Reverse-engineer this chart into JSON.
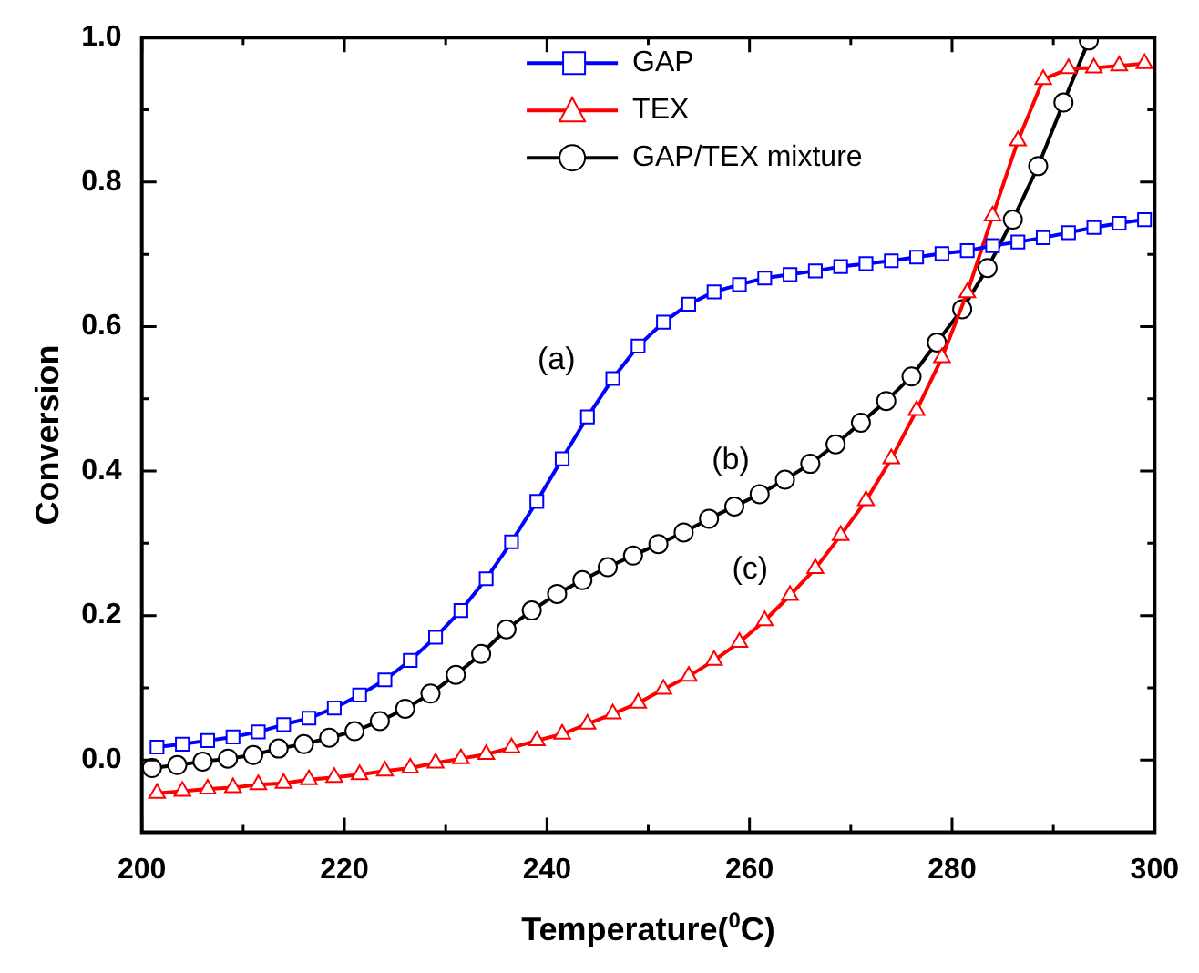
{
  "chart_data": {
    "type": "line",
    "xlabel": "Temperature($^{0}$C)",
    "ylabel": "Conversion",
    "xlim": [
      200,
      300
    ],
    "ylim": [
      -0.1,
      1.0
    ],
    "xticks": [
      200,
      {
        "value": 210,
        "label": null
      },
      220,
      {
        "value": 230,
        "label": null
      },
      240,
      {
        "value": 250,
        "label": null
      },
      260,
      {
        "value": 270,
        "label": null
      },
      280,
      {
        "value": 290,
        "label": null
      },
      300
    ],
    "yticks": [
      {
        "value": -0.1,
        "label": null
      },
      {
        "value": 0,
        "label": "0.0"
      },
      {
        "value": 0.1,
        "label": null
      },
      {
        "value": 0.2,
        "label": "0.2"
      },
      {
        "value": 0.3,
        "label": null
      },
      {
        "value": 0.4,
        "label": "0.4"
      },
      {
        "value": 0.5,
        "label": null
      },
      {
        "value": 0.6,
        "label": "0.6"
      },
      {
        "value": 0.7,
        "label": null
      },
      {
        "value": 0.8,
        "label": "0.8"
      },
      {
        "value": 0.9,
        "label": null
      },
      {
        "value": 1.0,
        "label": "1.0"
      }
    ],
    "legend": "top",
    "annotations": [
      "(a)",
      "(b)",
      "(c)"
    ],
    "series": [
      {
        "name": "GAP",
        "color": "#0000ff",
        "marker": "square",
        "x": [
          201.5,
          204,
          206.5,
          209,
          211.5,
          214,
          216.5,
          219,
          221.5,
          224,
          226.5,
          229,
          231.5,
          234,
          236.5,
          239,
          241.5,
          244,
          246.5,
          249,
          251.5,
          254,
          256.5,
          259,
          261.5,
          264,
          266.5,
          269,
          271.5,
          274,
          276.5,
          279,
          281.5,
          284,
          286.5,
          289,
          291.5,
          294,
          296.5,
          299
        ],
        "values": [
          0.018,
          0.022,
          0.027,
          0.032,
          0.039,
          0.049,
          0.058,
          0.072,
          0.09,
          0.111,
          0.138,
          0.17,
          0.207,
          0.251,
          0.302,
          0.358,
          0.417,
          0.475,
          0.528,
          0.573,
          0.606,
          0.631,
          0.648,
          0.658,
          0.667,
          0.672,
          0.677,
          0.683,
          0.687,
          0.691,
          0.696,
          0.701,
          0.705,
          0.712,
          0.717,
          0.723,
          0.73,
          0.737,
          0.743,
          0.748
        ]
      },
      {
        "name": "TEX",
        "color": "#ff0000",
        "marker": "triangle",
        "x": [
          201.5,
          204,
          206.5,
          209,
          211.5,
          214,
          216.5,
          219,
          221.5,
          224,
          226.5,
          229,
          231.5,
          234,
          236.5,
          239,
          241.5,
          244,
          246.5,
          249,
          251.5,
          254,
          256.5,
          259,
          261.5,
          264,
          266.5,
          269,
          271.5,
          274,
          276.5,
          279,
          281.5,
          284,
          286.5,
          289,
          291.5,
          294,
          296.5,
          299
        ],
        "values": [
          -0.046,
          -0.043,
          -0.04,
          -0.038,
          -0.034,
          -0.032,
          -0.027,
          -0.024,
          -0.02,
          -0.015,
          -0.011,
          -0.004,
          0.002,
          0.008,
          0.017,
          0.027,
          0.036,
          0.05,
          0.064,
          0.079,
          0.098,
          0.116,
          0.138,
          0.163,
          0.193,
          0.228,
          0.265,
          0.311,
          0.359,
          0.417,
          0.484,
          0.557,
          0.647,
          0.753,
          0.857,
          0.942,
          0.957,
          0.958,
          0.961,
          0.964
        ]
      },
      {
        "name": "GAP/TEX mixture",
        "color": "#000000",
        "marker": "circle",
        "x": [
          201,
          203.5,
          206,
          208.5,
          211,
          213.5,
          216,
          218.5,
          221,
          223.5,
          226,
          228.5,
          231,
          233.5,
          236,
          238.5,
          241,
          243.5,
          246,
          248.5,
          251,
          253.5,
          256,
          258.5,
          261,
          263.5,
          266,
          268.5,
          271,
          273.5,
          276,
          278.5,
          281,
          283.5,
          286,
          288.5,
          291,
          293.5
        ],
        "values": [
          -0.011,
          -0.007,
          -0.002,
          0.002,
          0.007,
          0.016,
          0.022,
          0.031,
          0.04,
          0.054,
          0.071,
          0.092,
          0.118,
          0.147,
          0.181,
          0.207,
          0.23,
          0.249,
          0.267,
          0.283,
          0.299,
          0.315,
          0.334,
          0.351,
          0.368,
          0.388,
          0.41,
          0.437,
          0.467,
          0.497,
          0.531,
          0.578,
          0.624,
          0.681,
          0.748,
          0.822,
          0.91,
          0.996
        ]
      }
    ]
  }
}
